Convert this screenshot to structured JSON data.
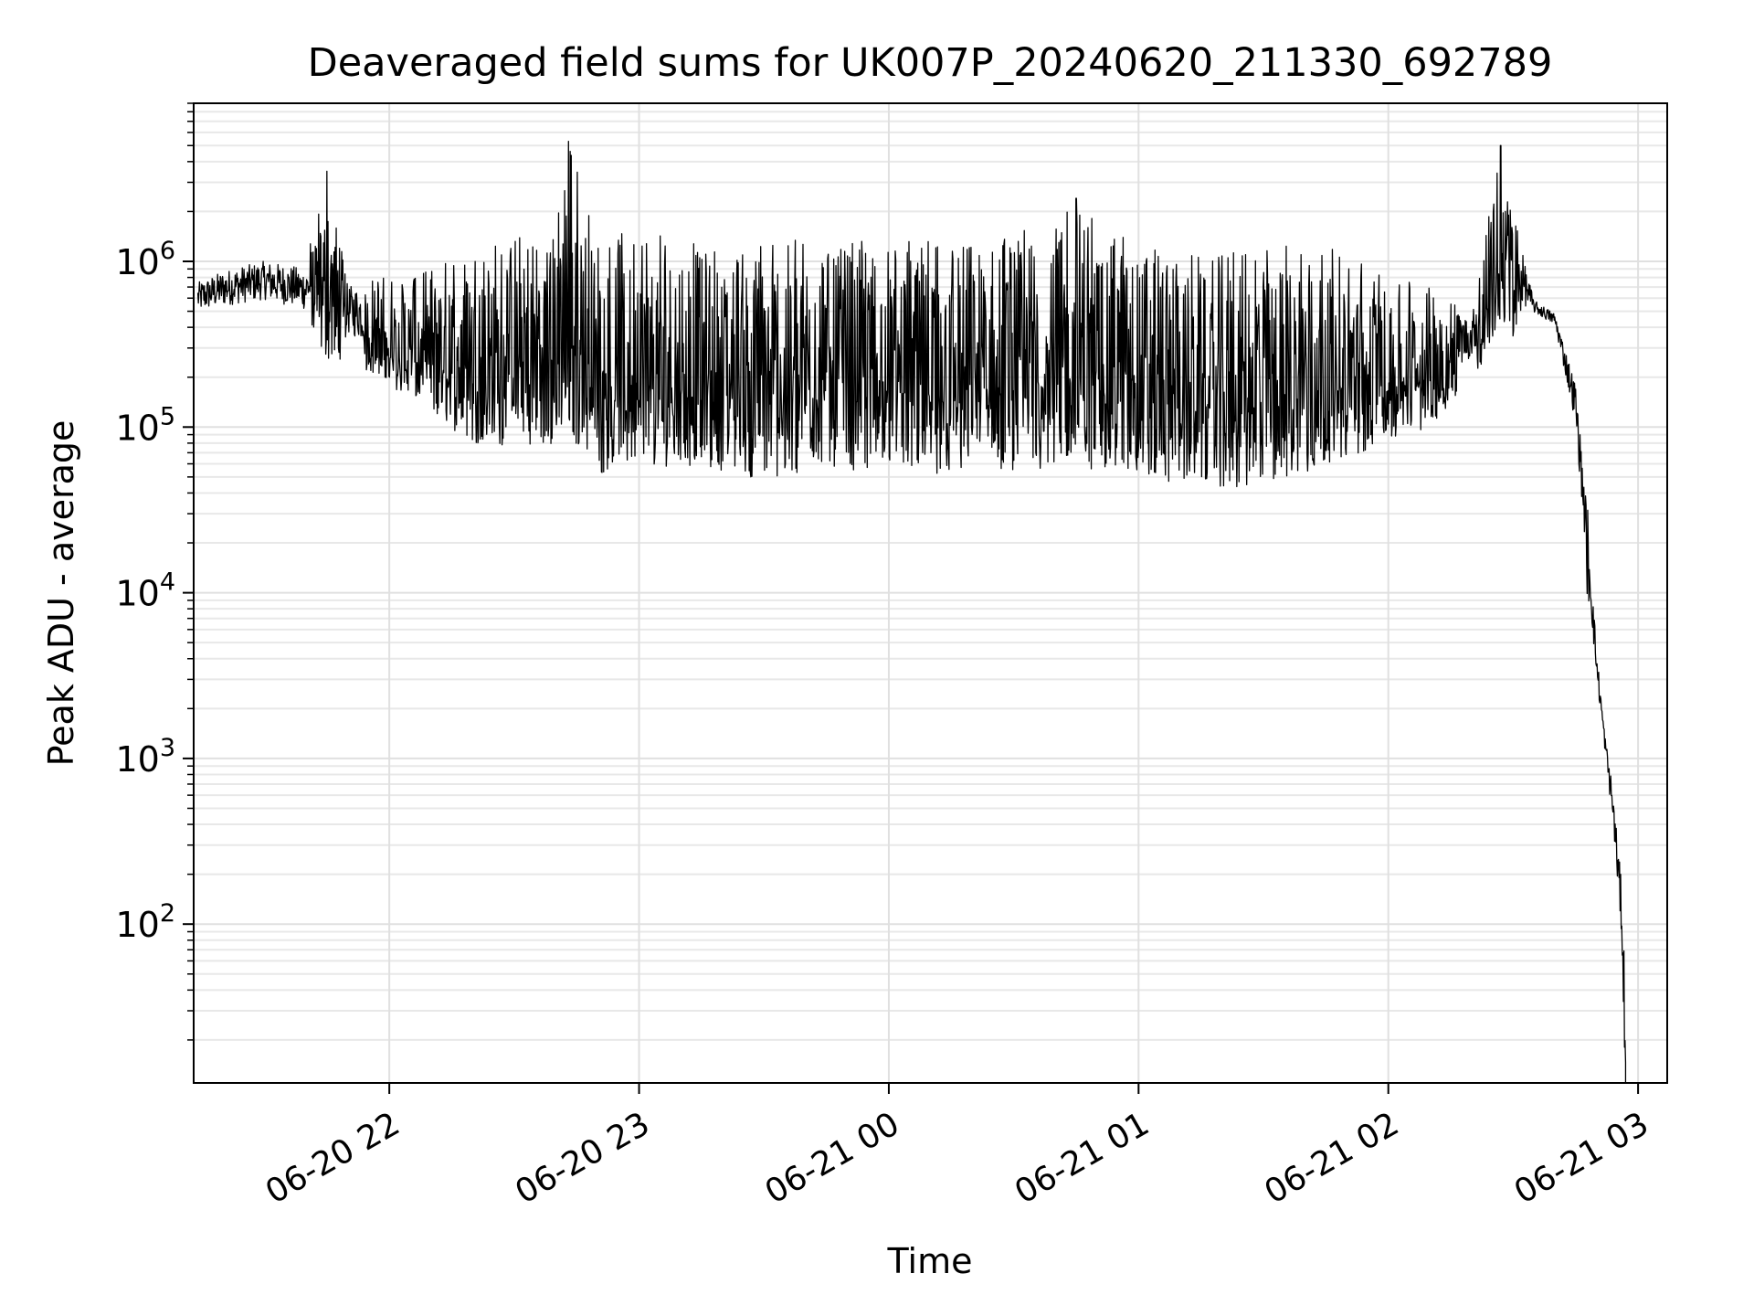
{
  "chart_data": {
    "type": "line",
    "title": "Deaveraged field sums for UK007P_20240620_211330_692789",
    "xlabel": "Time",
    "ylabel": "Peak ADU - average",
    "xscale": "time",
    "yscale": "log",
    "grid": "major and minor",
    "xlim": [
      "2024-06-20 21:13",
      "2024-06-21 03:07"
    ],
    "ylim": [
      11,
      9000000
    ],
    "x_ticks": [
      {
        "label": "06-20 22",
        "time": "2024-06-20 22:00"
      },
      {
        "label": "06-20 23",
        "time": "2024-06-20 23:00"
      },
      {
        "label": "06-21 00",
        "time": "2024-06-21 00:00"
      },
      {
        "label": "06-21 01",
        "time": "2024-06-21 01:00"
      },
      {
        "label": "06-21 02",
        "time": "2024-06-21 02:00"
      },
      {
        "label": "06-21 03",
        "time": "2024-06-21 03:00"
      }
    ],
    "y_ticks": [
      {
        "base": "10",
        "exp": "2",
        "value": 100
      },
      {
        "base": "10",
        "exp": "3",
        "value": 1000
      },
      {
        "base": "10",
        "exp": "4",
        "value": 10000
      },
      {
        "base": "10",
        "exp": "5",
        "value": 100000
      },
      {
        "base": "10",
        "exp": "6",
        "value": 1000000
      }
    ],
    "series": [
      {
        "color": "#000000",
        "envelope_description": "dense rapidly fluctuating signal; points give approximate lower (min) and upper (max) bounds",
        "points": [
          {
            "time": "2024-06-20 21:14",
            "min": 400000,
            "max": 800000
          },
          {
            "time": "2024-06-20 21:20",
            "min": 420000,
            "max": 950000
          },
          {
            "time": "2024-06-20 21:30",
            "min": 450000,
            "max": 1100000
          },
          {
            "time": "2024-06-20 21:40",
            "min": 380000,
            "max": 1000000
          },
          {
            "time": "2024-06-20 21:45",
            "min": 250000,
            "max": 3500000
          },
          {
            "time": "2024-06-20 21:50",
            "min": 260000,
            "max": 800000
          },
          {
            "time": "2024-06-20 22:00",
            "min": 180000,
            "max": 800000
          },
          {
            "time": "2024-06-20 22:10",
            "min": 120000,
            "max": 900000
          },
          {
            "time": "2024-06-20 22:20",
            "min": 80000,
            "max": 1300000
          },
          {
            "time": "2024-06-20 22:30",
            "min": 75000,
            "max": 1400000
          },
          {
            "time": "2024-06-20 22:40",
            "min": 80000,
            "max": 1600000
          },
          {
            "time": "2024-06-20 22:43",
            "min": 90000,
            "max": 5300000
          },
          {
            "time": "2024-06-20 22:50",
            "min": 50000,
            "max": 1500000
          },
          {
            "time": "2024-06-20 23:00",
            "min": 60000,
            "max": 1500000
          },
          {
            "time": "2024-06-20 23:15",
            "min": 55000,
            "max": 1300000
          },
          {
            "time": "2024-06-20 23:30",
            "min": 48000,
            "max": 1300000
          },
          {
            "time": "2024-06-20 23:45",
            "min": 55000,
            "max": 1400000
          },
          {
            "time": "2024-06-21 00:00",
            "min": 55000,
            "max": 1400000
          },
          {
            "time": "2024-06-21 00:15",
            "min": 50000,
            "max": 1300000
          },
          {
            "time": "2024-06-21 00:30",
            "min": 55000,
            "max": 1400000
          },
          {
            "time": "2024-06-21 00:45",
            "min": 55000,
            "max": 2400000
          },
          {
            "time": "2024-06-21 01:00",
            "min": 52000,
            "max": 1200000
          },
          {
            "time": "2024-06-21 01:15",
            "min": 42000,
            "max": 1100000
          },
          {
            "time": "2024-06-21 01:30",
            "min": 40000,
            "max": 1300000
          },
          {
            "time": "2024-06-21 01:45",
            "min": 60000,
            "max": 1300000
          },
          {
            "time": "2024-06-21 02:00",
            "min": 80000,
            "max": 800000
          },
          {
            "time": "2024-06-21 02:10",
            "min": 100000,
            "max": 700000
          },
          {
            "time": "2024-06-21 02:20",
            "min": 200000,
            "max": 500000
          },
          {
            "time": "2024-06-21 02:27",
            "min": 300000,
            "max": 5000000
          },
          {
            "time": "2024-06-21 02:35",
            "min": 450000,
            "max": 600000
          },
          {
            "time": "2024-06-21 02:40",
            "min": 380000,
            "max": 500000
          },
          {
            "time": "2024-06-21 02:45",
            "min": 80000,
            "max": 200000
          },
          {
            "time": "2024-06-21 02:48",
            "min": 8000,
            "max": 30000
          },
          {
            "time": "2024-06-21 02:50",
            "min": 2500,
            "max": 5000
          },
          {
            "time": "2024-06-21 02:52",
            "min": 1000,
            "max": 1500
          },
          {
            "time": "2024-06-21 02:54",
            "min": 300,
            "max": 700
          },
          {
            "time": "2024-06-21 02:56",
            "min": 60,
            "max": 200
          },
          {
            "time": "2024-06-21 02:57",
            "min": 10,
            "max": 40
          }
        ]
      }
    ]
  }
}
